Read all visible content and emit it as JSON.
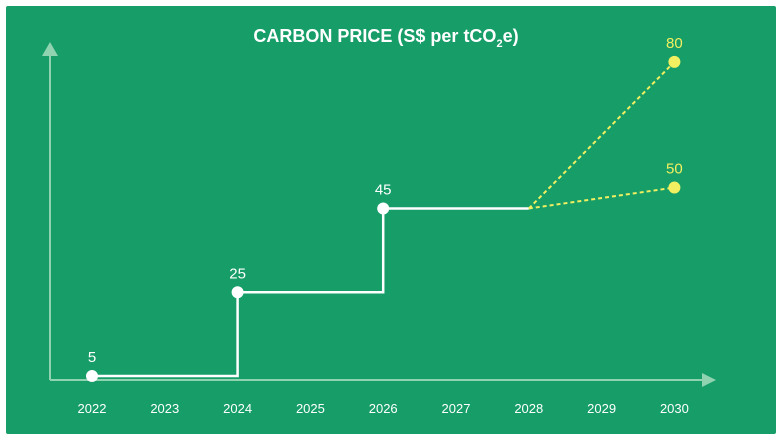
{
  "chart_data": {
    "type": "line",
    "title": {
      "main": "CARBON PRICE (S$ per tCO",
      "subscript": "2",
      "suffix": "e)"
    },
    "xlabel": "",
    "ylabel": "",
    "categories": [
      "2022",
      "2023",
      "2024",
      "2025",
      "2026",
      "2027",
      "2028",
      "2029",
      "2030"
    ],
    "ylim": [
      0,
      90
    ],
    "grid": false,
    "series": [
      {
        "style": "step",
        "color": "#ffffff",
        "points": [
          {
            "x": "2022",
            "y": 5
          },
          {
            "x": "2024",
            "y": 25
          },
          {
            "x": "2026",
            "y": 45
          },
          {
            "x": "2028",
            "y": 45
          }
        ],
        "labeled_points": [
          {
            "x": "2022",
            "y": 5,
            "label": "5"
          },
          {
            "x": "2024",
            "y": 25,
            "label": "25"
          },
          {
            "x": "2026",
            "y": 45,
            "label": "45"
          }
        ]
      },
      {
        "style": "dashed",
        "color": "#f2f060",
        "points": [
          {
            "x": "2028",
            "y": 45
          },
          {
            "x": "2030",
            "y": 80
          }
        ],
        "labeled_points": [
          {
            "x": "2030",
            "y": 80,
            "label": "80"
          }
        ]
      },
      {
        "style": "dashed",
        "color": "#f2f060",
        "points": [
          {
            "x": "2028",
            "y": 45
          },
          {
            "x": "2030",
            "y": 50
          }
        ],
        "labeled_points": [
          {
            "x": "2030",
            "y": 50,
            "label": "50"
          }
        ]
      }
    ],
    "highlight_category": "2030",
    "colors": {
      "background": "#169d68",
      "axis": "#8fd3b0",
      "line": "#ffffff",
      "projection": "#f2f060",
      "tick_text": "#ffffff",
      "highlight_tick_text": "#f2f060"
    }
  }
}
